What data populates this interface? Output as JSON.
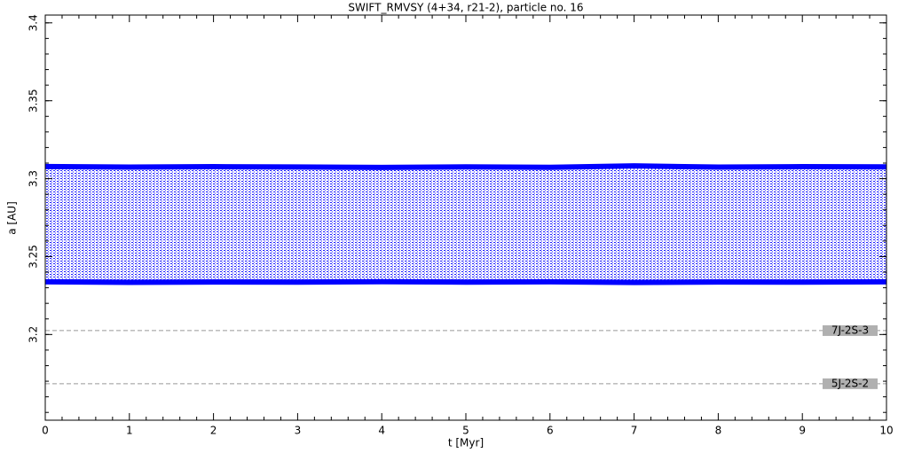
{
  "chart_data": {
    "type": "band",
    "title": "SWIFT_RMVSY (4+34, r21-2), particle no. 16",
    "x_label": "t [Myr]",
    "y_label": "a [AU]",
    "color": "#0000ff",
    "x": [
      0,
      1,
      2,
      3,
      4,
      5,
      6,
      7,
      8,
      9,
      10
    ],
    "series": [
      {
        "name": "upper",
        "values": [
          3.3078,
          3.3074,
          3.3077,
          3.3075,
          3.3072,
          3.3076,
          3.3073,
          3.3082,
          3.3074,
          3.3077,
          3.3076
        ]
      },
      {
        "name": "lower",
        "values": [
          3.2338,
          3.2335,
          3.2337,
          3.2336,
          3.2339,
          3.2336,
          3.2338,
          3.2334,
          3.2337,
          3.2336,
          3.2338
        ]
      }
    ],
    "resonances": [
      {
        "label": "7J-2S-3",
        "value": 3.2025
      },
      {
        "label": "5J-2S-2",
        "value": 3.1684
      }
    ],
    "xlim": [
      0,
      10
    ],
    "ylim": [
      3.145,
      3.405
    ],
    "xticks": [
      0,
      1,
      2,
      3,
      4,
      5,
      6,
      7,
      8,
      9,
      10
    ],
    "yticks": [
      3.2,
      3.25,
      3.3,
      3.35,
      3.4
    ]
  }
}
